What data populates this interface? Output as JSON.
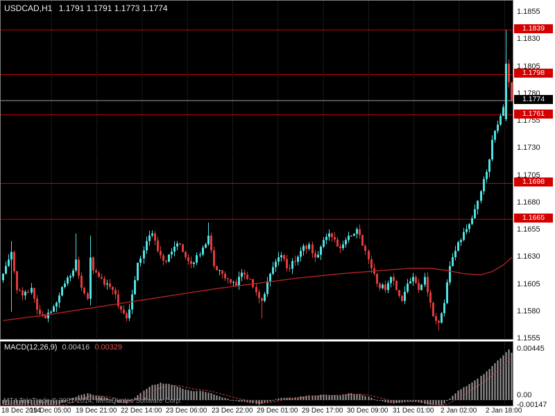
{
  "header": {
    "symbol_period": "USDCAD,H1",
    "ohlc": "1.1791 1.1791 1.1773 1.1774"
  },
  "macd_panel": {
    "label": "MACD(12,26,9)",
    "value_main": "0.00416",
    "value_signal": "0.00329",
    "copyright": "MT4 TeleTrade © 2001-2014, MetaQuotes Software Corp."
  },
  "colors": {
    "chart_bg": "#000000",
    "candle_up": "#4fe3e3",
    "candle_down": "#e03c3c",
    "ma_line": "#b22222",
    "level_line": "#cc0000",
    "level_badge": "#d40000",
    "current_badge": "#000000",
    "grid": "#4a4a4a",
    "macd_histogram": "#9c9c9c",
    "macd_signal": "#d04040",
    "current_price_line": "#999999"
  },
  "chart_data": {
    "type": "candlestick",
    "symbol": "USDCAD",
    "timeframe": "H1",
    "current_bar_ohlc": {
      "open": 1.1791,
      "high": 1.1791,
      "low": 1.1773,
      "close": 1.1774
    },
    "price_ticks": [
      1.1855,
      1.183,
      1.1805,
      1.178,
      1.1755,
      1.173,
      1.1705,
      1.168,
      1.1655,
      1.163,
      1.1605,
      1.158,
      1.1555
    ],
    "levels": [
      1.1839,
      1.1798,
      1.1761,
      1.1698,
      1.1665
    ],
    "current_price": 1.1774,
    "time_labels": [
      "18 Dec 2014",
      "19 Dec 05:00",
      "19 Dec 21:00",
      "22 Dec 14:00",
      "23 Dec 06:00",
      "23 Dec 22:00",
      "29 Dec 01:00",
      "29 Dec 17:00",
      "30 Dec 09:00",
      "31 Dec 01:00",
      "2 Jan 02:00",
      "2 Jan 18:00"
    ],
    "bars_total": 182,
    "close_waypoints": [
      [
        0,
        1.1615
      ],
      [
        2,
        1.1628
      ],
      [
        3,
        1.1635
      ],
      [
        5,
        1.16
      ],
      [
        7,
        1.1595
      ],
      [
        10,
        1.1602
      ],
      [
        12,
        1.1582
      ],
      [
        15,
        1.1574
      ],
      [
        17,
        1.158
      ],
      [
        20,
        1.1595
      ],
      [
        22,
        1.1606
      ],
      [
        25,
        1.1618
      ],
      [
        26,
        1.1628
      ],
      [
        28,
        1.1602
      ],
      [
        30,
        1.1592
      ],
      [
        31,
        1.163
      ],
      [
        32,
        1.1618
      ],
      [
        34,
        1.1612
      ],
      [
        37,
        1.1606
      ],
      [
        39,
        1.16
      ],
      [
        42,
        1.1582
      ],
      [
        44,
        1.1574
      ],
      [
        46,
        1.1596
      ],
      [
        48,
        1.1625
      ],
      [
        51,
        1.1645
      ],
      [
        53,
        1.1652
      ],
      [
        56,
        1.1632
      ],
      [
        58,
        1.1626
      ],
      [
        61,
        1.164
      ],
      [
        63,
        1.1642
      ],
      [
        65,
        1.163
      ],
      [
        67,
        1.1624
      ],
      [
        69,
        1.1632
      ],
      [
        72,
        1.1642
      ],
      [
        73,
        1.165
      ],
      [
        75,
        1.1622
      ],
      [
        78,
        1.1615
      ],
      [
        80,
        1.161
      ],
      [
        83,
        1.1604
      ],
      [
        85,
        1.1616
      ],
      [
        88,
        1.161
      ],
      [
        90,
        1.1598
      ],
      [
        92,
        1.159
      ],
      [
        94,
        1.1608
      ],
      [
        97,
        1.1626
      ],
      [
        99,
        1.1632
      ],
      [
        101,
        1.162
      ],
      [
        104,
        1.1626
      ],
      [
        106,
        1.1636
      ],
      [
        109,
        1.1642
      ],
      [
        111,
        1.163
      ],
      [
        114,
        1.1646
      ],
      [
        116,
        1.1652
      ],
      [
        119,
        1.164
      ],
      [
        121,
        1.1642
      ],
      [
        124,
        1.165
      ],
      [
        126,
        1.1656
      ],
      [
        129,
        1.1636
      ],
      [
        131,
        1.162
      ],
      [
        133,
        1.1606
      ],
      [
        136,
        1.16
      ],
      [
        138,
        1.1612
      ],
      [
        140,
        1.16
      ],
      [
        142,
        1.159
      ],
      [
        144,
        1.1606
      ],
      [
        146,
        1.1612
      ],
      [
        148,
        1.16
      ],
      [
        150,
        1.1612
      ],
      [
        151,
        1.1598
      ],
      [
        153,
        1.1576
      ],
      [
        155,
        1.157
      ],
      [
        157,
        1.1588
      ],
      [
        159,
        1.1622
      ],
      [
        161,
        1.1636
      ],
      [
        163,
        1.1646
      ],
      [
        165,
        1.1656
      ],
      [
        167,
        1.1666
      ],
      [
        169,
        1.1682
      ],
      [
        171,
        1.1702
      ],
      [
        173,
        1.172
      ],
      [
        174,
        1.1738
      ],
      [
        176,
        1.1752
      ],
      [
        177,
        1.176
      ],
      [
        178,
        1.1768
      ]
    ],
    "wick_overrides": {
      "3": {
        "h": 1.1645,
        "l": 1.158
      },
      "26": {
        "h": 1.1652
      },
      "31": {
        "h": 1.165,
        "l": 1.1586
      },
      "73": {
        "h": 1.1662
      },
      "92": {
        "l": 1.1574
      },
      "155": {
        "l": 1.1563
      }
    },
    "explicit_bars": [
      {
        "i": 179,
        "o": 1.1757,
        "h": 1.1839,
        "l": 1.1755,
        "c": 1.1808
      },
      {
        "i": 180,
        "o": 1.1808,
        "h": 1.1812,
        "l": 1.1786,
        "c": 1.1791
      },
      {
        "i": 181,
        "o": 1.1791,
        "h": 1.1791,
        "l": 1.1773,
        "c": 1.1774
      }
    ],
    "ma_waypoints": [
      [
        0,
        1.1572
      ],
      [
        15,
        1.1577
      ],
      [
        30,
        1.1583
      ],
      [
        45,
        1.1589
      ],
      [
        60,
        1.1595
      ],
      [
        75,
        1.1601
      ],
      [
        90,
        1.1606
      ],
      [
        105,
        1.1611
      ],
      [
        120,
        1.1615
      ],
      [
        135,
        1.1618
      ],
      [
        145,
        1.162
      ],
      [
        152,
        1.162
      ],
      [
        158,
        1.1618
      ],
      [
        164,
        1.1615
      ],
      [
        170,
        1.1614
      ],
      [
        174,
        1.1617
      ],
      [
        178,
        1.1623
      ],
      [
        181,
        1.163
      ]
    ],
    "macd": {
      "axis_labels": [
        "0.00445",
        "0.00",
        "-0.00147"
      ],
      "axis_values": [
        0.00445,
        0.0,
        -0.00147
      ],
      "current_main": 0.00416,
      "current_signal": 0.00329,
      "waypoints": [
        [
          0,
          -0.0004
        ],
        [
          5,
          -0.0006
        ],
        [
          10,
          -0.0005
        ],
        [
          15,
          -0.0007
        ],
        [
          20,
          -0.0004
        ],
        [
          24,
          0.0001
        ],
        [
          27,
          0.0004
        ],
        [
          30,
          0.0006
        ],
        [
          33,
          0.0004
        ],
        [
          37,
          0.0002
        ],
        [
          41,
          -0.0002
        ],
        [
          44,
          -0.0003
        ],
        [
          47,
          0.0002
        ],
        [
          50,
          0.0008
        ],
        [
          53,
          0.0013
        ],
        [
          56,
          0.0015
        ],
        [
          59,
          0.0014
        ],
        [
          62,
          0.0012
        ],
        [
          65,
          0.0009
        ],
        [
          68,
          0.0008
        ],
        [
          71,
          0.0008
        ],
        [
          74,
          0.0006
        ],
        [
          77,
          0.0003
        ],
        [
          80,
          0.0001
        ],
        [
          83,
          -0.0001
        ],
        [
          87,
          -0.0002
        ],
        [
          91,
          -0.0004
        ],
        [
          94,
          -0.0002
        ],
        [
          97,
          0.0001
        ],
        [
          100,
          0.0002
        ],
        [
          103,
          0.0002
        ],
        [
          106,
          0.0003
        ],
        [
          109,
          0.0004
        ],
        [
          112,
          0.0004
        ],
        [
          115,
          0.0005
        ],
        [
          118,
          0.0004
        ],
        [
          121,
          0.0005
        ],
        [
          124,
          0.0006
        ],
        [
          127,
          0.0005
        ],
        [
          130,
          0.0003
        ],
        [
          133,
          0.0
        ],
        [
          136,
          -0.0002
        ],
        [
          139,
          -0.0003
        ],
        [
          142,
          -0.0002
        ],
        [
          145,
          -0.0001
        ],
        [
          148,
          -0.0002
        ],
        [
          151,
          -0.0004
        ],
        [
          154,
          -0.0007
        ],
        [
          156,
          -0.0005
        ],
        [
          158,
          -0.0001
        ],
        [
          160,
          0.0004
        ],
        [
          162,
          0.0008
        ],
        [
          164,
          0.0011
        ],
        [
          166,
          0.0014
        ],
        [
          168,
          0.0017
        ],
        [
          170,
          0.0021
        ],
        [
          172,
          0.0025
        ],
        [
          174,
          0.003
        ],
        [
          176,
          0.0035
        ],
        [
          178,
          0.0039
        ],
        [
          179,
          0.0042
        ],
        [
          180,
          0.00445
        ],
        [
          181,
          0.00416
        ]
      ]
    }
  }
}
